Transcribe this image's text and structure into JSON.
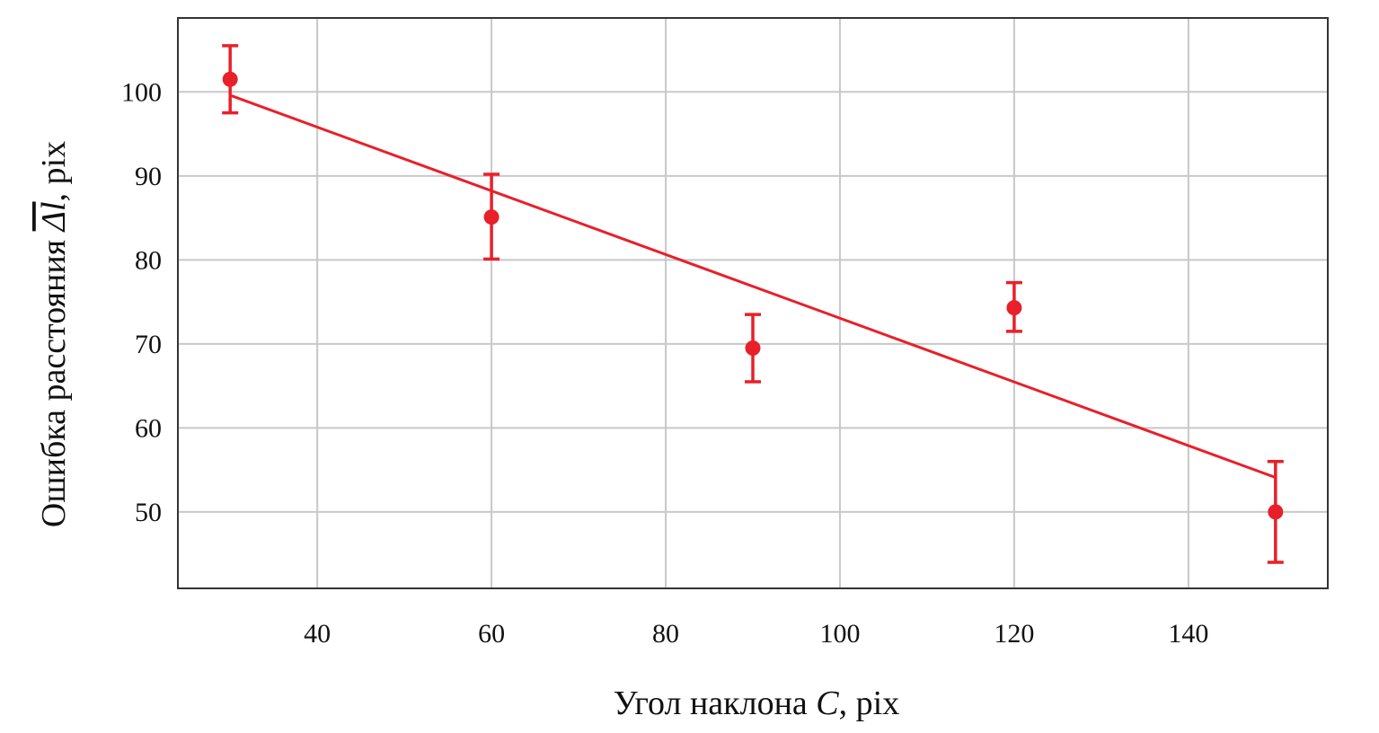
{
  "chart_data": {
    "type": "scatter",
    "title": "",
    "xlabel": "Угол наклона C, pix",
    "xlabel_parts": {
      "prefix": "Угол наклона ",
      "var": "C",
      "suffix": ", pix"
    },
    "ylabel": "Ошибка расстояния Δl, pix",
    "ylabel_parts": {
      "prefix": "Ошибка расстояния ",
      "var": "Δl",
      "suffix": ", pix"
    },
    "xlim": [
      24,
      156
    ],
    "ylim": [
      40.9,
      108.8
    ],
    "xticks": [
      40,
      60,
      80,
      100,
      120,
      140
    ],
    "yticks": [
      50,
      60,
      70,
      80,
      90,
      100
    ],
    "grid": true,
    "color": "#e8202a",
    "points": [
      {
        "x": 30,
        "y": 101.5,
        "err_low": 97.5,
        "err_high": 105.5
      },
      {
        "x": 60,
        "y": 85.1,
        "err_low": 80.1,
        "err_high": 90.2
      },
      {
        "x": 90,
        "y": 69.5,
        "err_low": 65.5,
        "err_high": 73.5
      },
      {
        "x": 120,
        "y": 74.3,
        "err_low": 71.5,
        "err_high": 77.3
      },
      {
        "x": 150,
        "y": 50.0,
        "err_low": 44.0,
        "err_high": 56.0
      }
    ],
    "fit_line": {
      "x": [
        30,
        150
      ],
      "y": [
        99.6,
        54.1
      ]
    }
  }
}
